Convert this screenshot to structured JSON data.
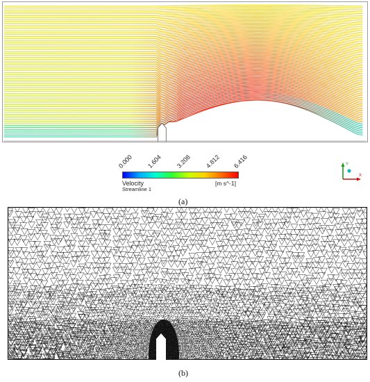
{
  "figure": {
    "caption_a": "(a)",
    "caption_b": "(b)"
  },
  "legend": {
    "ticks": [
      "0.000",
      "1.604",
      "3.208",
      "4.812",
      "6.416"
    ],
    "title": "Velocity",
    "subtitle": "Streamline 1",
    "unit": "[m s^-1]",
    "colors": [
      "#0000ff",
      "#00a8ff",
      "#00ffd0",
      "#30ff30",
      "#c8ff00",
      "#ffd000",
      "#ff6a00",
      "#ff0000"
    ]
  },
  "axes_triad": {
    "y_label": "Y",
    "x_label": "X",
    "y_color": "#1a9a1a",
    "x_color": "#d01010",
    "z_color": "#20b0c0"
  }
}
